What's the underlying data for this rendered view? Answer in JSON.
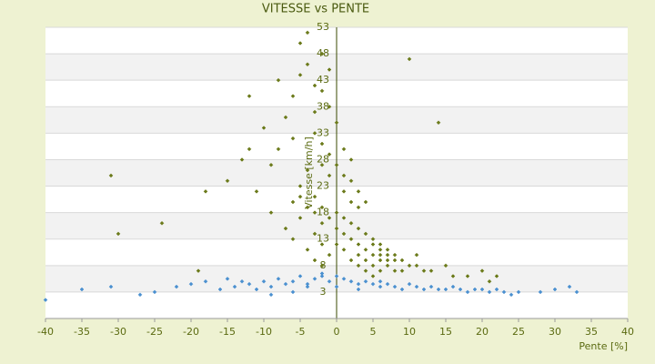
{
  "chart_data": {
    "type": "scatter",
    "title": "VITESSE vs PENTE",
    "x_label": "Pente [%]",
    "y_label": "Vitesse [km/h]",
    "xlim": [
      -40,
      40
    ],
    "xticks": [
      -40,
      -35,
      -30,
      -25,
      -20,
      -15,
      -10,
      -5,
      0,
      5,
      10,
      15,
      20,
      25,
      30,
      35,
      40
    ],
    "ylim": [
      -2,
      53
    ],
    "yticks": [
      3,
      8,
      13,
      18,
      23,
      28,
      33,
      38,
      43,
      48,
      53
    ],
    "grid": true,
    "series": [
      {
        "color": "#6b7a1a",
        "x": [
          -5,
          -4,
          -3,
          -2,
          -1,
          0,
          1,
          2,
          -6,
          -7,
          -3,
          -2,
          -1,
          0,
          1,
          2,
          3,
          4,
          -8,
          -9,
          -4,
          -5,
          -3,
          -2,
          0,
          1,
          2,
          3,
          4,
          5,
          6,
          7,
          8,
          9,
          10,
          11,
          12,
          3,
          4,
          5,
          6,
          7,
          5,
          6,
          8,
          4,
          3,
          2,
          1,
          0,
          -1,
          -2,
          -3,
          -4,
          -5,
          -6,
          -10,
          -12,
          -15,
          -18,
          -24,
          -30,
          -31,
          -11,
          -7,
          -6,
          -4,
          -3,
          -2,
          -1,
          0,
          1,
          2,
          3,
          -5,
          -4,
          -3,
          -2,
          -1,
          -6,
          -8,
          -9,
          14,
          15,
          18,
          20,
          21,
          22,
          10,
          11,
          13,
          16,
          4,
          5,
          6,
          7,
          8,
          9,
          5,
          6,
          7,
          3,
          2,
          1,
          -1,
          -2,
          -12,
          -13,
          -19,
          -2,
          -3,
          -5
        ],
        "values": [
          50,
          46,
          42,
          48,
          38,
          35,
          30,
          28,
          40,
          36,
          33,
          31,
          29,
          27,
          25,
          24,
          22,
          20,
          30,
          27,
          26,
          23,
          21,
          19,
          18,
          17,
          16,
          15,
          14,
          13,
          12,
          11,
          10,
          9,
          8,
          8,
          7,
          12,
          11,
          10,
          9,
          9,
          8,
          7,
          7,
          9,
          10,
          13,
          14,
          15,
          17,
          16,
          18,
          19,
          21,
          20,
          34,
          30,
          24,
          22,
          16,
          14,
          25,
          22,
          15,
          13,
          11,
          9,
          8,
          10,
          12,
          11,
          9,
          8,
          44,
          52,
          37,
          41,
          45,
          32,
          43,
          18,
          35,
          8,
          6,
          7,
          5,
          6,
          47,
          10,
          7,
          6,
          7,
          6,
          11,
          8,
          9,
          7,
          12,
          10,
          10,
          19,
          20,
          22,
          25,
          27,
          40,
          28,
          7,
          12,
          14,
          17
        ]
      },
      {
        "color": "#4a90d0",
        "x": [
          -40,
          -35,
          -31,
          -27,
          -25,
          -22,
          -20,
          -18,
          -16,
          -15,
          -14,
          -13,
          -12,
          -11,
          -10,
          -9,
          -8,
          -7,
          -6,
          -5,
          -4,
          -3,
          -2,
          -1,
          0,
          1,
          2,
          3,
          4,
          5,
          6,
          7,
          8,
          9,
          10,
          11,
          12,
          13,
          14,
          15,
          16,
          17,
          18,
          19,
          20,
          21,
          22,
          23,
          24,
          25,
          28,
          30,
          32,
          33,
          -9,
          -6,
          -4,
          -2,
          0,
          3,
          6,
          9
        ],
        "values": [
          1.5,
          3.5,
          4,
          2.5,
          3,
          4,
          4.5,
          5,
          3.5,
          5.5,
          4,
          5,
          4.5,
          3.5,
          5,
          4,
          5.5,
          4.5,
          5,
          6,
          4.5,
          5.5,
          6,
          5,
          4,
          5.5,
          5,
          4.5,
          5,
          4.5,
          4,
          4.5,
          4,
          3.5,
          4.5,
          4,
          3.5,
          4,
          3.5,
          3.5,
          4,
          3.5,
          3,
          3.5,
          3.5,
          3,
          3.5,
          3,
          2.5,
          3,
          3,
          3.5,
          4,
          3,
          2.5,
          3,
          4,
          6.5,
          6,
          3.5,
          5,
          3.5
        ]
      }
    ]
  }
}
